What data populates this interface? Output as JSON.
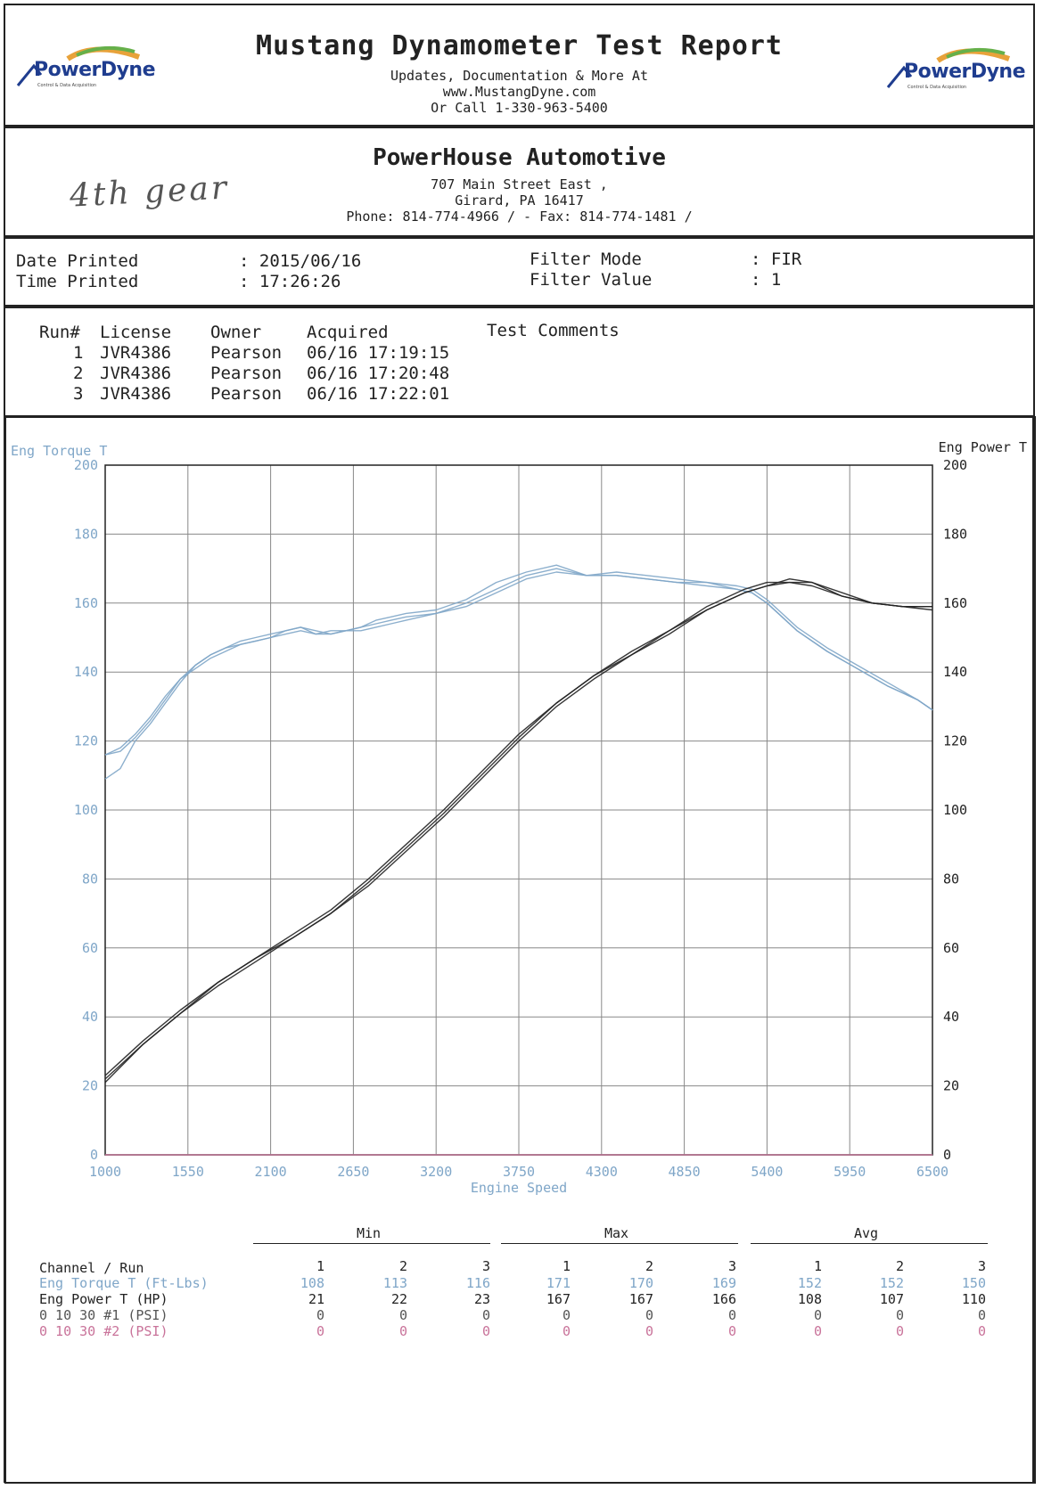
{
  "header": {
    "title": "Mustang Dynamometer Test Report",
    "line1": "Updates, Documentation & More At",
    "line2": "www.MustangDyne.com",
    "line3": "Or Call 1-330-963-5400",
    "logo_left": "PowerDyne",
    "logo_tag": "Control & Data Acquisition",
    "logo_right": "PowerDyne"
  },
  "shop": {
    "name": "PowerHouse Automotive",
    "address1": "707 Main Street East ,",
    "address2": "Girard, PA  16417",
    "phone": "Phone: 814-774-4966 /  - Fax: 814-774-1481 /",
    "handwritten_note": "4th gear"
  },
  "print_info": {
    "date_label": "Date Printed",
    "date_value": ": 2015/06/16",
    "time_label": "Time Printed",
    "time_value": ": 17:26:26",
    "filter_mode_label": "Filter Mode",
    "filter_mode_value": ": FIR",
    "filter_value_label": "Filter Value",
    "filter_value_value": ": 1"
  },
  "runs": {
    "headers": [
      "Run#",
      "License",
      "Owner",
      "Acquired",
      "Test Comments"
    ],
    "rows": [
      {
        "run": "1",
        "license": "JVR4386",
        "owner": "Pearson",
        "acquired": "06/16 17:19:15"
      },
      {
        "run": "2",
        "license": "JVR4386",
        "owner": "Pearson",
        "acquired": "06/16 17:20:48"
      },
      {
        "run": "3",
        "license": "JVR4386",
        "owner": "Pearson",
        "acquired": "06/16 17:22:01"
      }
    ]
  },
  "chart_data": {
    "type": "line",
    "xlabel": "Engine Speed",
    "ylabel_left": "Eng Torque T",
    "ylabel_right": "Eng Power T",
    "xlim": [
      1000,
      6500
    ],
    "ylim": [
      0,
      200
    ],
    "x_ticks": [
      "1000",
      "1550",
      "2100",
      "2650",
      "3200",
      "3750",
      "4300",
      "4850",
      "5400",
      "5950",
      "6500"
    ],
    "y_ticks": [
      "0",
      "20",
      "40",
      "60",
      "80",
      "100",
      "120",
      "140",
      "160",
      "180",
      "200"
    ],
    "grid": true,
    "colors": {
      "torque": "#7fa6c8",
      "power": "#222222",
      "psi1": "#7a7a7a",
      "psi2": "#c9739a"
    },
    "series": [
      {
        "name": "Eng Torque T",
        "run": 1,
        "x": [
          1000,
          1100,
          1200,
          1300,
          1400,
          1500,
          1600,
          1700,
          1800,
          1900,
          2000,
          2100,
          2200,
          2300,
          2400,
          2500,
          2600,
          2700,
          2800,
          2900,
          3000,
          3200,
          3400,
          3600,
          3800,
          4000,
          4200,
          4400,
          4600,
          4800,
          5000,
          5200,
          5300,
          5400,
          5500,
          5600,
          5800,
          6000,
          6200,
          6400,
          6500
        ],
        "y": [
          116,
          117,
          121,
          126,
          132,
          138,
          142,
          145,
          147,
          148,
          149,
          150,
          152,
          153,
          151,
          152,
          152,
          153,
          154,
          155,
          156,
          157,
          160,
          164,
          168,
          170,
          168,
          168,
          167,
          166,
          166,
          164,
          163,
          160,
          156,
          152,
          146,
          141,
          136,
          132,
          129
        ]
      },
      {
        "name": "Eng Torque T",
        "run": 2,
        "x": [
          1000,
          1100,
          1200,
          1300,
          1400,
          1500,
          1600,
          1700,
          1800,
          1900,
          2000,
          2100,
          2200,
          2300,
          2400,
          2500,
          2600,
          2700,
          2800,
          2900,
          3000,
          3200,
          3400,
          3600,
          3800,
          4000,
          4200,
          4400,
          4600,
          4800,
          5000,
          5200,
          5300,
          5400,
          5500,
          5600,
          5800,
          6000,
          6200,
          6400,
          6500
        ],
        "y": [
          109,
          112,
          120,
          125,
          131,
          137,
          142,
          145,
          147,
          149,
          150,
          151,
          152,
          153,
          152,
          151,
          152,
          153,
          155,
          156,
          157,
          158,
          161,
          166,
          169,
          171,
          168,
          169,
          168,
          167,
          166,
          165,
          164,
          161,
          157,
          153,
          147,
          142,
          137,
          132,
          129
        ]
      },
      {
        "name": "Eng Torque T",
        "run": 3,
        "x": [
          1000,
          1100,
          1200,
          1300,
          1400,
          1500,
          1600,
          1700,
          1800,
          1900,
          2000,
          2100,
          2200,
          2300,
          2400,
          2500,
          2600,
          2700,
          2800,
          2900,
          3000,
          3200,
          3400,
          3600,
          3800,
          4000,
          4200,
          4400,
          4600,
          4800,
          5000,
          5200,
          5300,
          5400,
          5500,
          5600,
          5800,
          6000,
          6200,
          6400,
          6500
        ],
        "y": [
          116,
          118,
          122,
          127,
          133,
          138,
          141,
          144,
          146,
          148,
          149,
          150,
          151,
          152,
          151,
          151,
          152,
          152,
          153,
          154,
          155,
          157,
          159,
          163,
          167,
          169,
          168,
          168,
          167,
          166,
          165,
          164,
          163,
          160,
          156,
          152,
          146,
          141,
          136,
          132,
          129
        ]
      },
      {
        "name": "Eng Power T",
        "run": 1,
        "x": [
          1000,
          1250,
          1500,
          1750,
          2000,
          2250,
          2500,
          2750,
          3000,
          3250,
          3500,
          3750,
          4000,
          4250,
          4500,
          4750,
          5000,
          5250,
          5400,
          5550,
          5700,
          5900,
          6100,
          6300,
          6500
        ],
        "y": [
          22,
          32,
          41,
          50,
          57,
          63,
          70,
          79,
          89,
          99,
          110,
          121,
          131,
          139,
          145,
          152,
          158,
          163,
          165,
          166,
          166,
          163,
          160,
          159,
          159
        ]
      },
      {
        "name": "Eng Power T",
        "run": 2,
        "x": [
          1000,
          1250,
          1500,
          1750,
          2000,
          2250,
          2500,
          2750,
          3000,
          3250,
          3500,
          3750,
          4000,
          4250,
          4500,
          4750,
          5000,
          5250,
          5400,
          5550,
          5700,
          5900,
          6100,
          6300,
          6500
        ],
        "y": [
          21,
          32,
          41,
          49,
          56,
          63,
          70,
          78,
          88,
          98,
          109,
          120,
          130,
          138,
          145,
          151,
          158,
          163,
          165,
          167,
          166,
          162,
          160,
          159,
          159
        ]
      },
      {
        "name": "Eng Power T",
        "run": 3,
        "x": [
          1000,
          1250,
          1500,
          1750,
          2000,
          2250,
          2500,
          2750,
          3000,
          3250,
          3500,
          3750,
          4000,
          4250,
          4500,
          4750,
          5000,
          5250,
          5400,
          5550,
          5700,
          5900,
          6100,
          6300,
          6500
        ],
        "y": [
          23,
          33,
          42,
          50,
          57,
          64,
          71,
          80,
          90,
          100,
          111,
          122,
          131,
          139,
          146,
          152,
          159,
          164,
          166,
          166,
          165,
          162,
          160,
          159,
          158
        ]
      },
      {
        "name": "0 10 30 #1 (PSI)",
        "run": 1,
        "x": [
          1000,
          6500
        ],
        "y": [
          0,
          0
        ]
      },
      {
        "name": "0 10 30 #2 (PSI)",
        "run": 1,
        "x": [
          1000,
          6500
        ],
        "y": [
          0,
          0
        ]
      }
    ]
  },
  "stats": {
    "min_label": "Min",
    "max_label": "Max",
    "avg_label": "Avg",
    "channel_header": "Channel / Run",
    "run_numbers": [
      "1",
      "2",
      "3",
      "1",
      "2",
      "3",
      "1",
      "2",
      "3"
    ],
    "rows": [
      {
        "channel": "Eng Torque T (Ft-Lbs)",
        "color": "#7fa6c8",
        "values": [
          "108",
          "113",
          "116",
          "171",
          "170",
          "169",
          "152",
          "152",
          "150"
        ]
      },
      {
        "channel": "Eng Power T (HP)",
        "color": "#222222",
        "values": [
          "21",
          "22",
          "23",
          "167",
          "167",
          "166",
          "108",
          "107",
          "110"
        ]
      },
      {
        "channel": "0 10 30 #1 (PSI)",
        "color": "#555555",
        "values": [
          "0",
          "0",
          "0",
          "0",
          "0",
          "0",
          "0",
          "0",
          "0"
        ]
      },
      {
        "channel": "0 10 30 #2 (PSI)",
        "color": "#c9739a",
        "values": [
          "0",
          "0",
          "0",
          "0",
          "0",
          "0",
          "0",
          "0",
          "0"
        ]
      }
    ]
  }
}
